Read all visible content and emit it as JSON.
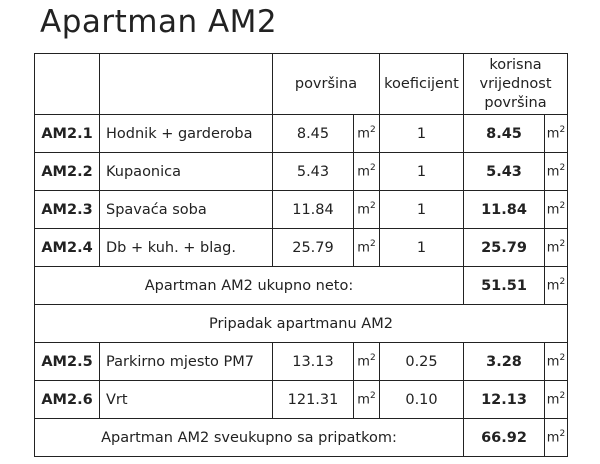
{
  "title": "Apartman AM2",
  "header": {
    "area": "površina",
    "coefficient": "koeficijent",
    "useful_line1": "korisna",
    "useful_line2": "vrijednost",
    "useful_line3": "površina"
  },
  "unit": "m",
  "unit_sup": "2",
  "rooms": [
    {
      "code": "AM2.1",
      "name": "Hodnik + garderoba",
      "area": "8.45",
      "coef": "1",
      "useful": "8.45"
    },
    {
      "code": "AM2.2",
      "name": "Kupaonica",
      "area": "5.43",
      "coef": "1",
      "useful": "5.43"
    },
    {
      "code": "AM2.3",
      "name": "Spavaća soba",
      "area": "11.84",
      "coef": "1",
      "useful": "11.84"
    },
    {
      "code": "AM2.4",
      "name": "Db + kuh. + blag.",
      "area": "25.79",
      "coef": "1",
      "useful": "25.79"
    }
  ],
  "net_total": {
    "label": "Apartman AM2 ukupno neto:",
    "value": "51.51"
  },
  "appurtenance_label": "Pripadak apartmanu AM2",
  "extras": [
    {
      "code": "AM2.5",
      "name": "Parkirno mjesto PM7",
      "area": "13.13",
      "coef": "0.25",
      "useful": "3.28"
    },
    {
      "code": "AM2.6",
      "name": "Vrt",
      "area": "121.31",
      "coef": "0.10",
      "useful": "12.13"
    }
  ],
  "grand_total": {
    "label": "Apartman AM2 sveukupno sa pripatkom:",
    "value": "66.92"
  }
}
